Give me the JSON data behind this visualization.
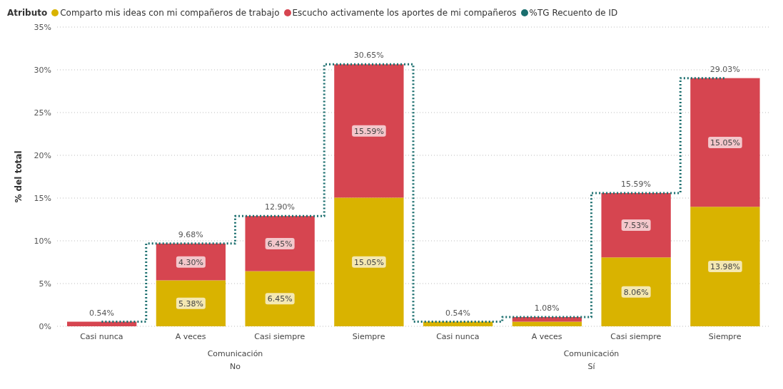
{
  "chart_data": {
    "type": "bar",
    "stacked": true,
    "ylabel": "% del total",
    "legend_title": "Atributo",
    "legend": "top left",
    "grid": "y",
    "line_style": "dotted",
    "categories": [
      "Casi nunca",
      "A veces",
      "Casi siempre",
      "Siempre",
      "Casi nunca",
      "A veces",
      "Casi siempre",
      "Siempre"
    ],
    "annotations": [
      "Comunicación",
      "No",
      "Comunicación",
      "Sí"
    ],
    "ylim": [
      0,
      35
    ],
    "yticks": [
      {
        "value": 0,
        "label": "0%"
      },
      {
        "value": 5,
        "label": "5%"
      },
      {
        "value": 10,
        "label": "10%"
      },
      {
        "value": 15,
        "label": "15%"
      },
      {
        "value": 20,
        "label": "20%"
      },
      {
        "value": 25,
        "label": "25%"
      },
      {
        "value": 30,
        "label": "30%"
      },
      {
        "value": 35,
        "label": "35%"
      }
    ],
    "series": [
      {
        "name": "Comparto mis ideas con mi compañeros de trabajo",
        "color": "#d9b300",
        "values": [
          null,
          5.38,
          6.45,
          15.05,
          0.54,
          0.54,
          8.06,
          13.98
        ],
        "value_labels": [
          null,
          "5.38%",
          "6.45%",
          "15.05%",
          null,
          null,
          "8.06%",
          "13.98%"
        ]
      },
      {
        "name": "Escucho activamente los aportes de mi compañeros",
        "color": "#d64550",
        "values": [
          0.54,
          4.3,
          6.45,
          15.59,
          null,
          0.54,
          7.53,
          15.05
        ],
        "value_labels": [
          null,
          "4.30%",
          "6.45%",
          "15.59%",
          null,
          null,
          "7.53%",
          "15.05%"
        ]
      },
      {
        "name": "%TG Recuento de ID",
        "type": "step",
        "color": "#1a6e6e",
        "values": [
          0.54,
          9.68,
          12.9,
          30.65,
          0.54,
          1.08,
          15.59,
          29.03
        ]
      }
    ],
    "totals": [
      "0.54%",
      "9.68%",
      "12.90%",
      "30.65%",
      "0.54%",
      "1.08%",
      "15.59%",
      "29.03%"
    ]
  }
}
